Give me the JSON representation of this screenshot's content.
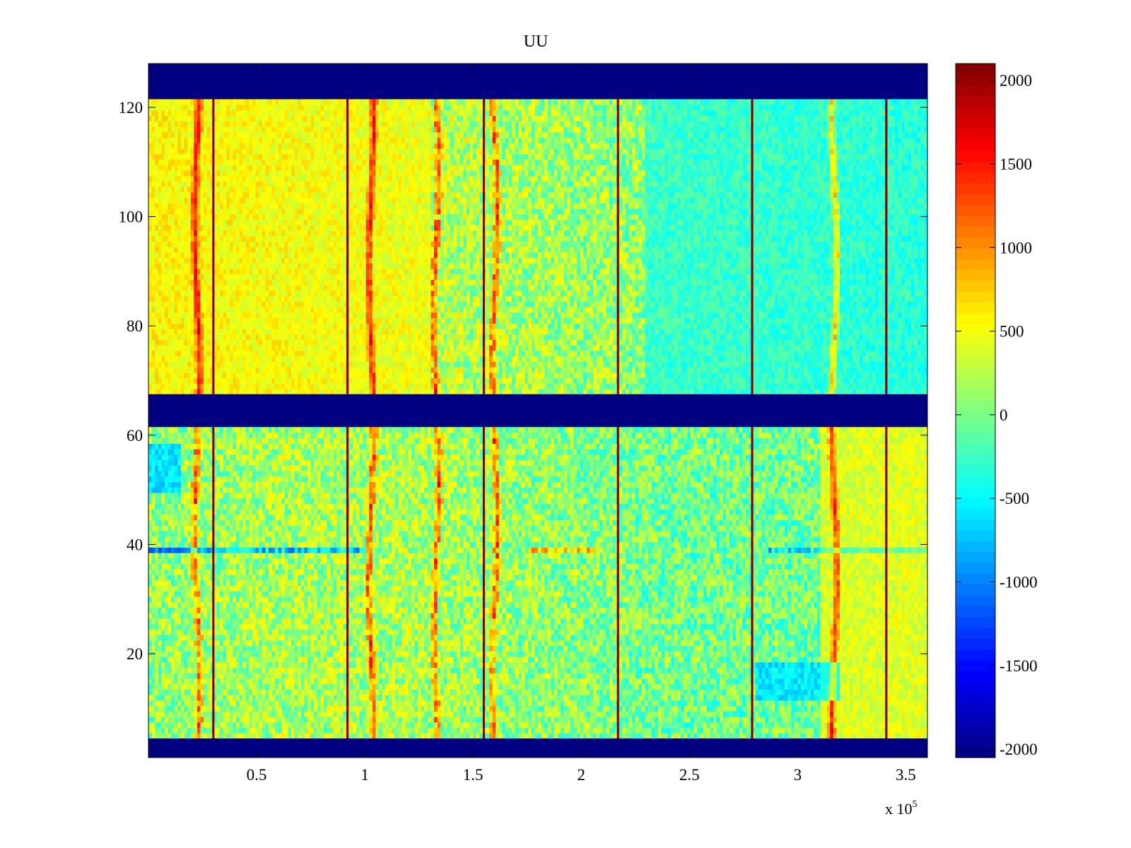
{
  "chart_data": {
    "type": "heatmap",
    "title": "UU",
    "xlabel": "",
    "ylabel": "",
    "x_scale_label": "x 10",
    "x_scale_exponent": "5",
    "xlim": [
      0,
      3.6
    ],
    "ylim": [
      1,
      128
    ],
    "xticks": [
      0.5,
      1,
      1.5,
      2,
      2.5,
      3,
      3.5
    ],
    "xtick_labels": [
      "0.5",
      "1",
      "1.5",
      "2",
      "2.5",
      "3",
      "3.5"
    ],
    "yticks": [
      20,
      40,
      60,
      80,
      100,
      120
    ],
    "ytick_labels": [
      "20",
      "40",
      "60",
      "80",
      "100",
      "120"
    ],
    "colormap": "jet",
    "clim": [
      -2050,
      2100
    ],
    "colorbar_ticks": [
      2000,
      1500,
      1000,
      500,
      0,
      -500,
      -1000,
      -1500,
      -2000
    ],
    "colorbar_tick_labels": [
      "2000",
      "1500",
      "1000",
      "500",
      "0",
      "-500",
      "-1000",
      "-1500",
      "-2000"
    ],
    "masked_row_bands": [
      {
        "from": 121.5,
        "to": 128,
        "value": -2050
      },
      {
        "from": 61.5,
        "to": 67.5,
        "value": -2050
      },
      {
        "from": 1,
        "to": 4.5,
        "value": -2050
      }
    ],
    "dark_spike_columns_x": [
      0.3,
      0.92,
      1.55,
      2.17,
      2.79,
      3.41
    ],
    "orange_stripe_columns_x": [
      0.225,
      1.03,
      1.33,
      1.6,
      3.17
    ],
    "blue_stripe_row_y": 39,
    "regions": [
      {
        "name": "upper-left warm region",
        "x": [
          0,
          1.3
        ],
        "y": [
          67.5,
          121.5
        ],
        "mean_value": 450
      },
      {
        "name": "upper-right cool region",
        "x": [
          2.3,
          3.6
        ],
        "y": [
          67.5,
          121.5
        ],
        "mean_value": -350
      },
      {
        "name": "lower-left cool patch",
        "x": [
          0,
          0.15
        ],
        "y": [
          50,
          58
        ],
        "mean_value": -800
      },
      {
        "name": "lower-right warm region",
        "x": [
          3.1,
          3.6
        ],
        "y": [
          4.5,
          61.5
        ],
        "mean_value": 500
      },
      {
        "name": "lower-right cool band",
        "x": [
          2.8,
          3.2
        ],
        "y": [
          12,
          18
        ],
        "mean_value": -700
      }
    ],
    "value_range": [
      -2050,
      2100
    ]
  }
}
